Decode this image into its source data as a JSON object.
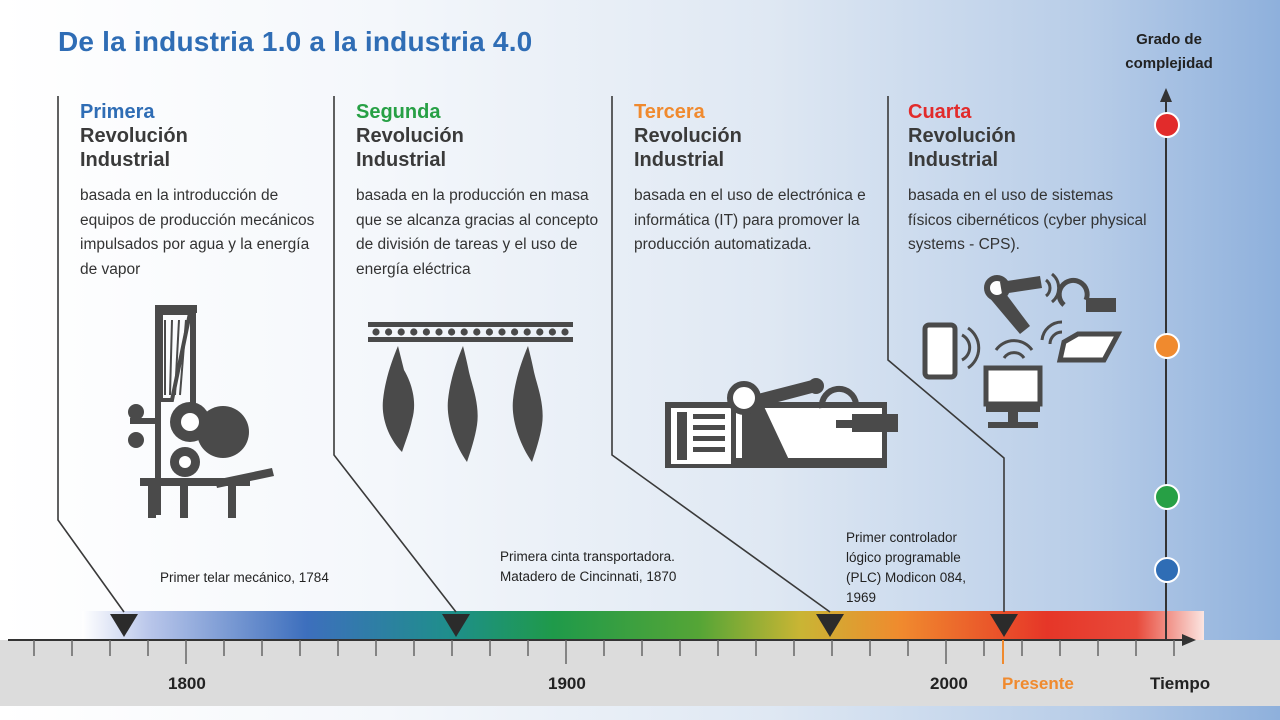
{
  "title": "De la industria 1.0  a la industria 4.0",
  "axis": {
    "complexity_label_line1": "Grado de",
    "complexity_label_line2": "complejidad",
    "time_label": "Tiempo",
    "present_label": "Presente",
    "tick_labels": [
      "1800",
      "1900",
      "2000"
    ]
  },
  "eras": [
    {
      "ordinal": "Primera",
      "rev_line1": "Revolución",
      "rev_line2": "Industrial",
      "description": "basada en la introducción de equipos de producción mecánicos impulsados por agua y la energía de vapor",
      "color": "#2f6db5",
      "icon": "mechanical-loom-icon"
    },
    {
      "ordinal": "Segunda",
      "rev_line1": "Revolución",
      "rev_line2": "Industrial",
      "description": "basada en la producción en masa que se alcanza gracias al concepto de  división de tareas y el uso de energía eléctrica",
      "color": "#27a045",
      "icon": "conveyor-belt-icon"
    },
    {
      "ordinal": "Tercera",
      "rev_line1": "Revolución",
      "rev_line2": "Industrial",
      "description": "basada en el uso de electrónica e informática (IT) para promover la producción automatizada.",
      "color": "#f08a2e",
      "icon": "robot-arm-plc-icon"
    },
    {
      "ordinal": "Cuarta",
      "rev_line1": "Revolución",
      "rev_line2": "Industrial",
      "description": "basada en el uso de sistemas físicos cibernéticos (cyber physical systems - CPS).",
      "color": "#e22b2b",
      "icon": "cyber-physical-systems-icon"
    }
  ],
  "milestones": [
    {
      "line1": "Primer telar mecánico, 1784"
    },
    {
      "line1": "Primera cinta transportadora.",
      "line2": "Matadero de Cincinnati, 1870"
    },
    {
      "line1": "Primer controlador",
      "line2": "lógico programable",
      "line3": "(PLC) Modicon 084,",
      "line4": "1969"
    }
  ],
  "complexity_levels": [
    {
      "level": 1,
      "color": "#2f6db5"
    },
    {
      "level": 2,
      "color": "#27a045"
    },
    {
      "level": 3,
      "color": "#f08a2e"
    },
    {
      "level": 4,
      "color": "#e22b2b"
    }
  ]
}
